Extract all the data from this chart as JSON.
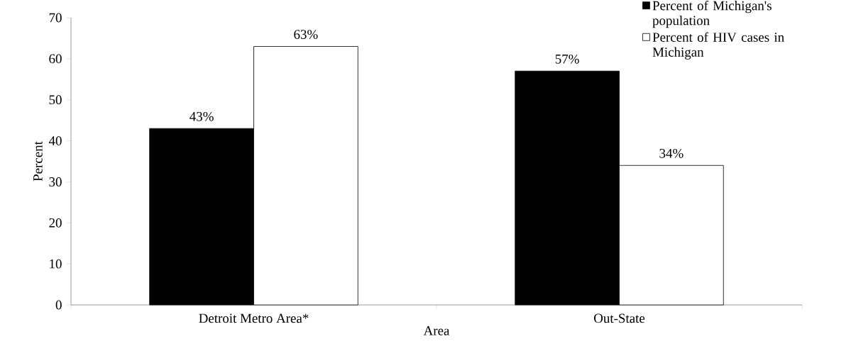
{
  "chart_data": {
    "type": "bar",
    "xlabel": "Area",
    "ylabel": "Percent",
    "categories": [
      "Detroit Metro Area*",
      "Out-State"
    ],
    "series": [
      {
        "name": "Percent of Michigan's population",
        "color": "#000000",
        "values": [
          43,
          57
        ],
        "value_labels": [
          "43%",
          "57%"
        ]
      },
      {
        "name": "Percent of HIV cases in Michigan",
        "color": "#ffffff",
        "values": [
          63,
          34
        ],
        "value_labels": [
          "63%",
          "34%"
        ]
      }
    ],
    "ylim": [
      0,
      70
    ],
    "yticks": [
      0,
      10,
      20,
      30,
      40,
      50,
      60,
      70
    ],
    "grid": false,
    "legend": "top right"
  }
}
